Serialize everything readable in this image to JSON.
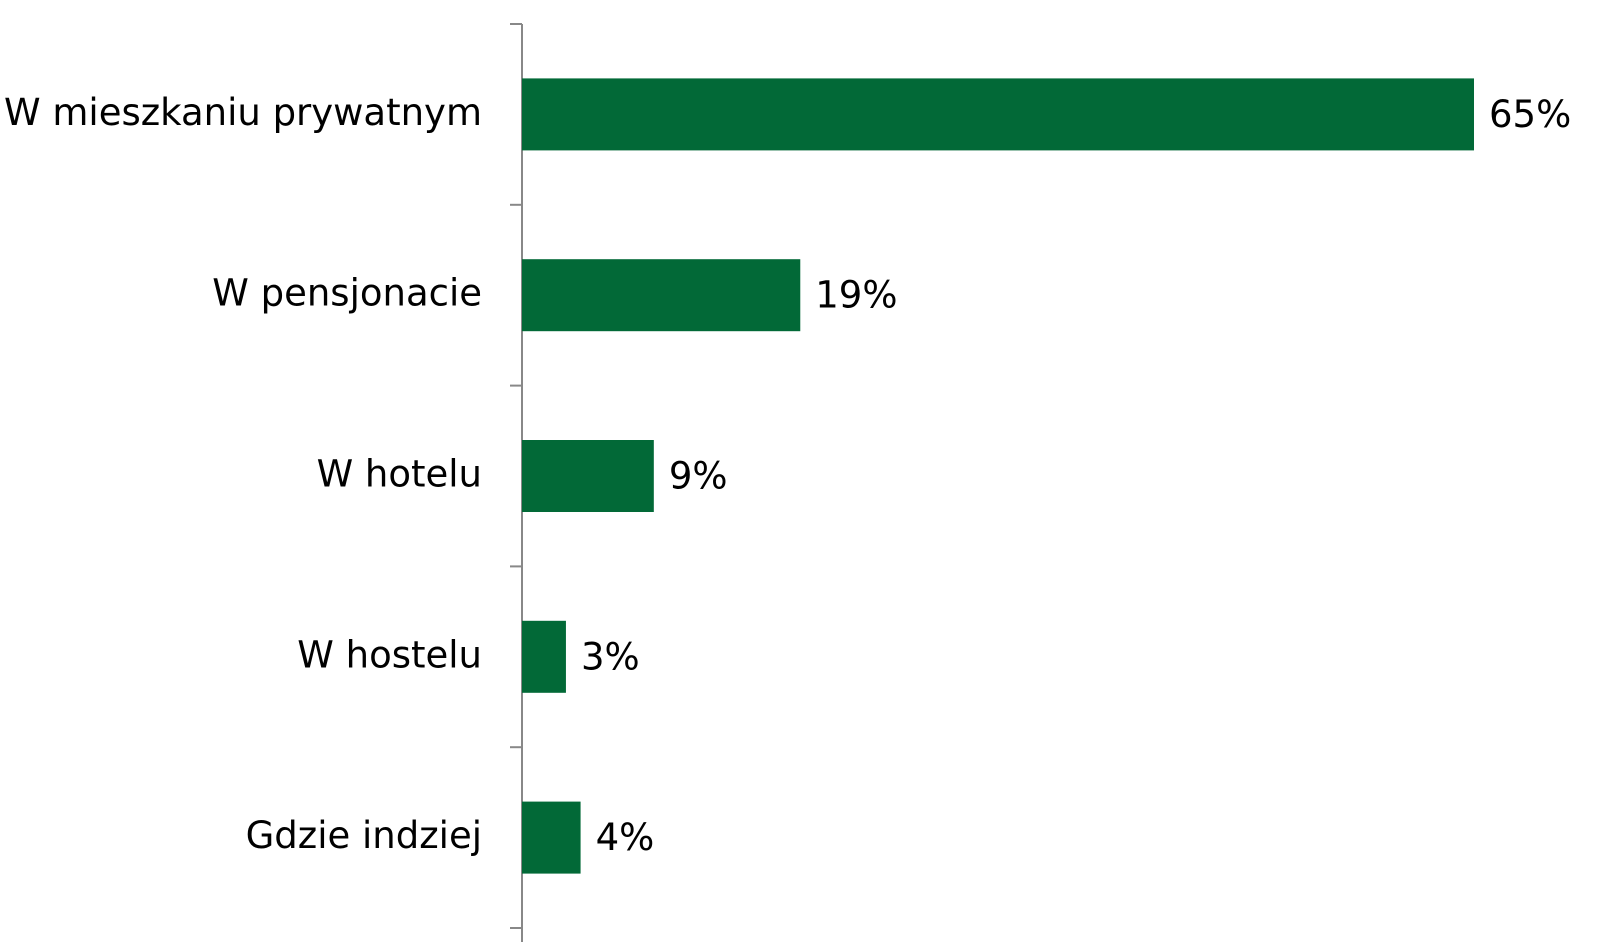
{
  "chart_data": {
    "type": "bar",
    "orientation": "horizontal",
    "categories": [
      "W mieszkaniu prywatnym",
      "W pensjonacie",
      "W hotelu",
      "W hostelu",
      "Gdzie indziej"
    ],
    "values": [
      65,
      19,
      9,
      3,
      4
    ],
    "value_labels": [
      "65%",
      "19%",
      "9%",
      "3%",
      "4%"
    ],
    "color": "#026937"
  }
}
